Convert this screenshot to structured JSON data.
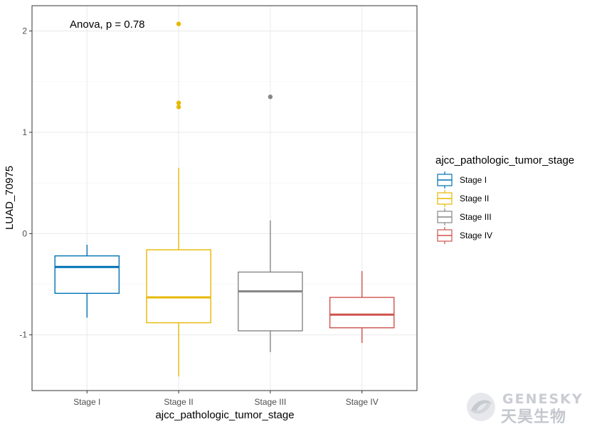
{
  "chart_data": {
    "type": "boxplot",
    "xlabel": "ajcc_pathologic_tumor_stage",
    "ylabel": "LUAD_70975",
    "annotation": "Anova, p = 0.78",
    "ylim": [
      -1.55,
      2.25
    ],
    "yticks": [
      -1,
      0,
      1,
      2
    ],
    "yticklabels": [
      "-1",
      "0",
      "1",
      "2"
    ],
    "grid": true,
    "legend": {
      "title": "ajcc_pathologic_tumor_stage",
      "position": "right"
    },
    "categories": [
      "Stage I",
      "Stage II",
      "Stage III",
      "Stage IV"
    ],
    "series": [
      {
        "name": "Stage I",
        "color": "#0072B5",
        "whisker_low": -0.83,
        "q1": -0.59,
        "median": -0.33,
        "q3": -0.22,
        "whisker_high": -0.11,
        "outliers": []
      },
      {
        "name": "Stage II",
        "color": "#E7B800",
        "whisker_low": -1.41,
        "q1": -0.88,
        "median": -0.63,
        "q3": -0.16,
        "whisker_high": 0.65,
        "outliers": [
          1.25,
          1.29,
          2.07
        ]
      },
      {
        "name": "Stage III",
        "color": "#868686",
        "whisker_low": -1.17,
        "q1": -0.96,
        "median": -0.57,
        "q3": -0.38,
        "whisker_high": 0.13,
        "outliers": [
          1.35
        ]
      },
      {
        "name": "Stage IV",
        "color": "#CD534C",
        "whisker_low": -1.08,
        "q1": -0.93,
        "median": -0.8,
        "q3": -0.63,
        "whisker_high": -0.37,
        "outliers": []
      }
    ]
  },
  "watermark": {
    "logo_icon": "genesky-swirl-icon",
    "text_en": "GENESKY",
    "text_cn": "天昊生物"
  }
}
